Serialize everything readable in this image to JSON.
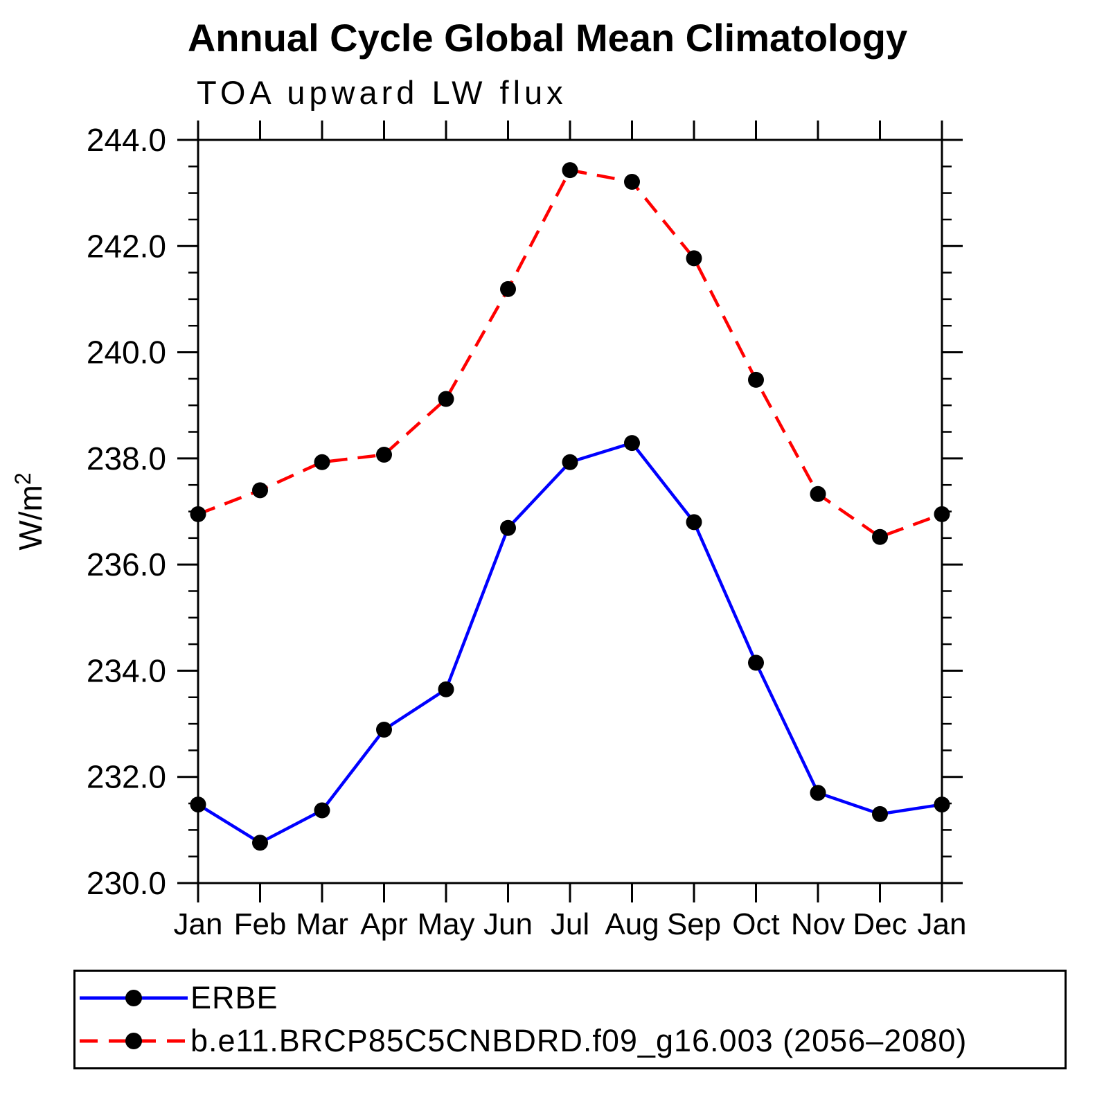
{
  "chart_data": {
    "type": "line",
    "title": "Annual Cycle Global Mean Climatology",
    "subtitle": "TOA upward LW flux",
    "xlabel": "",
    "ylabel": "W/m²",
    "x_tick_labels": [
      "Jan",
      "Feb",
      "Mar",
      "Apr",
      "May",
      "Jun",
      "Jul",
      "Aug",
      "Sep",
      "Oct",
      "Nov",
      "Dec",
      "Jan"
    ],
    "ylim": [
      230.0,
      244.0
    ],
    "y_major_step": 2.0,
    "y_minor_step": 0.5,
    "y_tick_labels": [
      "230.0",
      "232.0",
      "234.0",
      "236.0",
      "238.0",
      "240.0",
      "242.0",
      "244.0"
    ],
    "grid": false,
    "legend_position": "bottom",
    "marker_color": "#000000",
    "series": [
      {
        "name": "ERBE",
        "color": "#0000ff",
        "line_style": "solid",
        "marker": "filled-circle",
        "values": [
          231.48,
          230.76,
          231.37,
          232.89,
          233.65,
          236.69,
          237.93,
          238.29,
          236.8,
          234.15,
          231.7,
          231.3,
          231.48
        ]
      },
      {
        "name": "b.e11.BRCP85C5CNBDRD.f09_g16.003 (2056–2080)",
        "color": "#ff0000",
        "line_style": "dashed",
        "marker": "filled-circle",
        "values": [
          236.95,
          237.4,
          237.93,
          238.07,
          239.12,
          241.19,
          243.43,
          243.21,
          241.77,
          239.48,
          237.33,
          236.52,
          236.95
        ]
      }
    ]
  }
}
